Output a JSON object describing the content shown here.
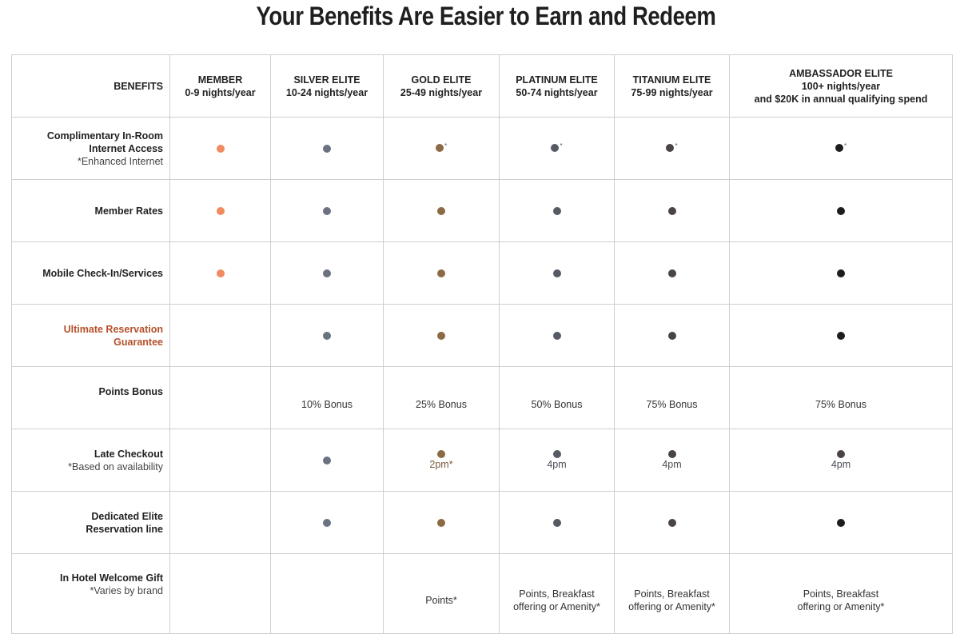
{
  "title": "Your Benefits Are Easier to Earn and Redeem",
  "colors": {
    "member": "#f08a60",
    "silver": "#6b7280",
    "gold": "#8c6a43",
    "platinum": "#555a63",
    "titanium": "#4a4348",
    "ambassador": "#1d1d1d",
    "highlight": "#b5502a"
  },
  "header": {
    "benefits": "BENEFITS",
    "tiers": [
      {
        "name": "MEMBER",
        "nights": "0-9 nights/year"
      },
      {
        "name": "SILVER ELITE",
        "nights": "10-24 nights/year"
      },
      {
        "name": "GOLD ELITE",
        "nights": "25-49 nights/year"
      },
      {
        "name": "PLATINUM ELITE",
        "nights": "50-74 nights/year"
      },
      {
        "name": "TITANIUM ELITE",
        "nights": "75-99 nights/year"
      },
      {
        "name": "AMBASSADOR ELITE",
        "nights": "100+ nights/year",
        "extra": "and $20K in annual qualifying spend"
      }
    ]
  },
  "rows": [
    {
      "label": "Complimentary In-Room Internet Access",
      "note": "*Enhanced Internet"
    },
    {
      "label": "Member Rates"
    },
    {
      "label": "Mobile Check-In/Services"
    },
    {
      "label": "Ultimate Reservation Guarantee"
    },
    {
      "label": "Points Bonus",
      "values": [
        "",
        "10% Bonus",
        "25% Bonus",
        "50% Bonus",
        "75% Bonus",
        "75% Bonus"
      ]
    },
    {
      "label": "Late Checkout",
      "note": "*Based on availability",
      "values": [
        "",
        "",
        "2pm*",
        "4pm",
        "4pm",
        "4pm"
      ]
    },
    {
      "label": "Dedicated Elite Reservation line"
    },
    {
      "label": "In Hotel Welcome Gift",
      "note": "*Varies by brand",
      "values": [
        "",
        "",
        "Points*",
        "Points, Breakfast offering or Amenity*",
        "Points, Breakfast offering or Amenity*",
        "Points, Breakfast offering or Amenity*"
      ]
    }
  ]
}
